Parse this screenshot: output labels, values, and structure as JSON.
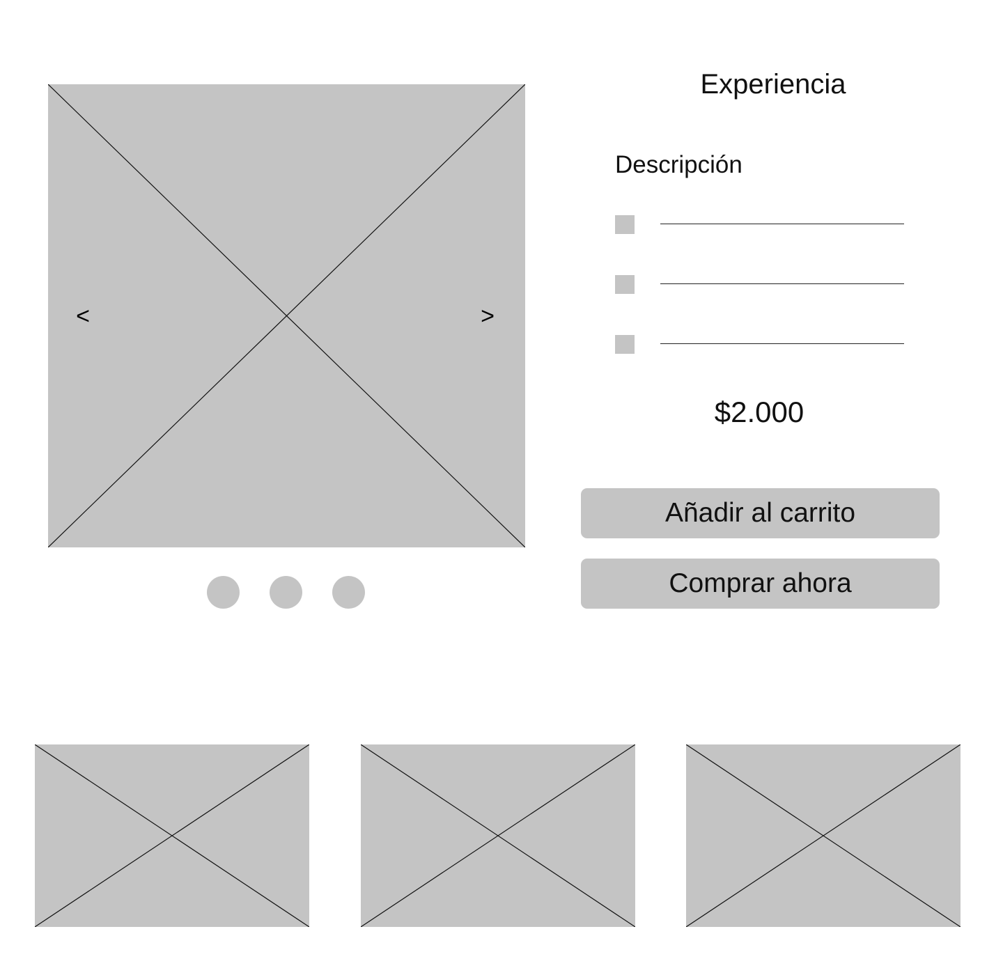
{
  "product": {
    "title": "Experiencia",
    "description_heading": "Descripción",
    "features_count_visible": 3,
    "price": "$2.000"
  },
  "carousel": {
    "prev_label": "<",
    "next_label": ">",
    "dots": 3
  },
  "actions": {
    "add_to_cart_label": "Añadir al carrito",
    "buy_now_label": "Comprar ahora"
  },
  "colors": {
    "placeholder": "#c4c4c4",
    "text": "#111111",
    "background": "#ffffff"
  }
}
